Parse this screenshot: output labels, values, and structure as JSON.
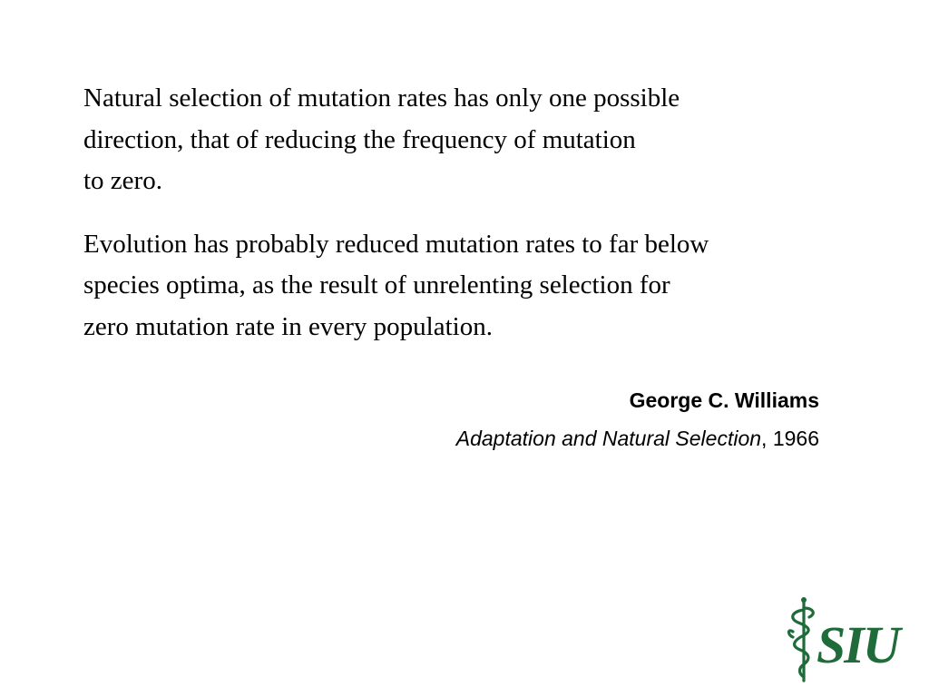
{
  "quote": {
    "paragraph_1": [
      "Natural selection of mutation rates has only one possible",
      "direction, that of reducing the frequency of mutation",
      "to zero."
    ],
    "paragraph_2": [
      "Evolution has probably reduced mutation rates to far below",
      "species optima, as the result of unrelenting selection for",
      "zero mutation rate in every population."
    ]
  },
  "attribution": {
    "author": "George C. Williams",
    "book_title": "Adaptation and Natural Selection",
    "year_suffix": ", 1966"
  },
  "logo": {
    "text": "SIU",
    "icon": "caduceus-icon",
    "color": "#1f6b3a"
  }
}
